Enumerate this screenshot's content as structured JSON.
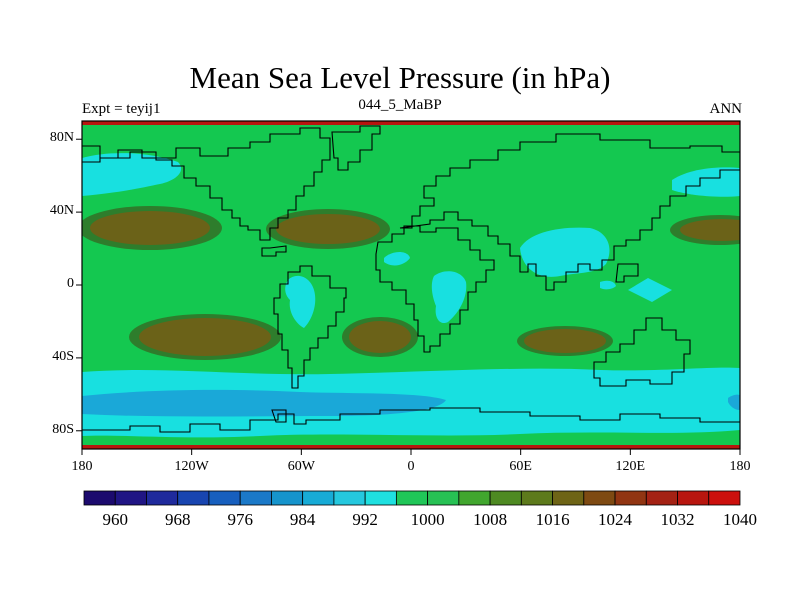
{
  "figure": {
    "title": "Mean Sea Level Pressure (in hPa)",
    "subtitle_left": "Expt = teyij1",
    "subtitle_center": "044_5_MaBP",
    "subtitle_right": "ANN"
  },
  "axes": {
    "x_labels": [
      "180",
      "120W",
      "60W",
      "0",
      "60E",
      "120E",
      "180"
    ],
    "y_labels": [
      "80N",
      "40N",
      "0",
      "40S",
      "80S"
    ]
  },
  "colorbar": {
    "labels": [
      "960",
      "968",
      "976",
      "984",
      "992",
      "1000",
      "1008",
      "1016",
      "1024",
      "1032",
      "1040"
    ],
    "colors": [
      "#1c0a6e",
      "#201584",
      "#1f2a9c",
      "#1845b0",
      "#175fbe",
      "#1b79c8",
      "#1694cc",
      "#17abd6",
      "#25c8de",
      "#1fe0e0",
      "#20c658",
      "#27c154",
      "#41a62e",
      "#4e8a22",
      "#5d7a1c",
      "#6e6416",
      "#7e4a12",
      "#913512",
      "#a42214",
      "#b8160f",
      "#cc100d"
    ]
  },
  "map": {
    "colors": {
      "base_green": "#14c850",
      "dark_green": "#2e7d2c",
      "brown": "#6b6218",
      "cyan": "#18e0e0",
      "blue": "#1aa8d8",
      "polar_red": "#b8160f"
    }
  }
}
